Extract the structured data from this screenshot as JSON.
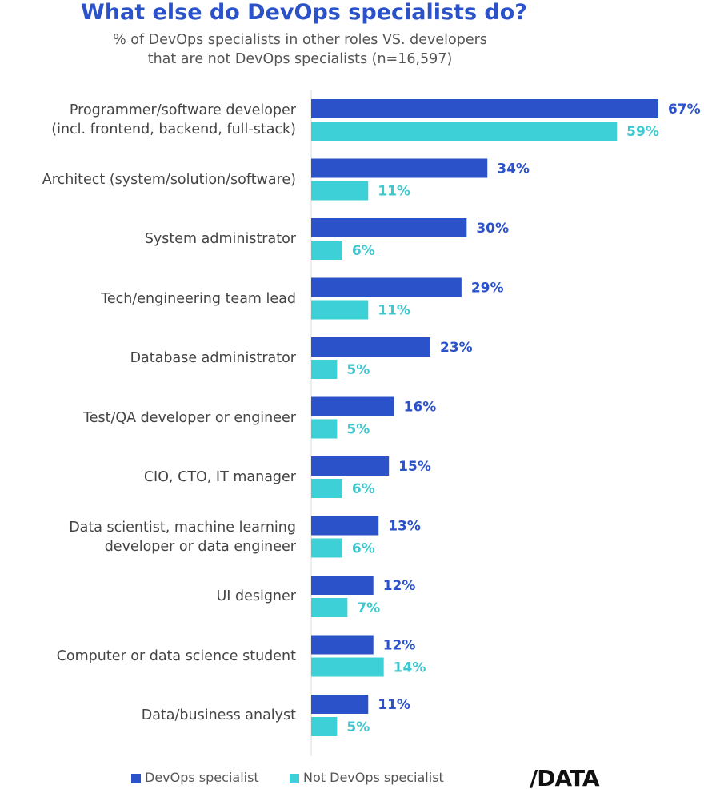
{
  "chart_data": {
    "type": "bar",
    "orientation": "horizontal",
    "title": "What else do DevOps specialists do?",
    "subtitle": "% of DevOps specialists in other roles VS. developers\nthat are not DevOps specialists (n=16,597)",
    "categories": [
      "Programmer/software developer\n(incl. frontend, backend, full-stack)",
      "Architect (system/solution/software)",
      "System administrator",
      "Tech/engineering team lead",
      "Database administrator",
      "Test/QA developer or engineer",
      "CIO, CTO, IT manager",
      "Data scientist, machine learning\ndeveloper or data engineer",
      "UI designer",
      "Computer or data science student",
      "Data/business analyst"
    ],
    "series": [
      {
        "name": "DevOps specialist",
        "color": "#2b52c8",
        "values": [
          67,
          34,
          30,
          29,
          23,
          16,
          15,
          13,
          12,
          12,
          11
        ],
        "value_labels": [
          "67%",
          "34%",
          "30%",
          "29%",
          "23%",
          "16%",
          "15%",
          "13%",
          "12%",
          "12%",
          "11%"
        ]
      },
      {
        "name": "Not DevOps specialist",
        "color": "#3dd0d6",
        "values": [
          59,
          11,
          6,
          11,
          5,
          5,
          6,
          6,
          7,
          14,
          5
        ],
        "value_labels": [
          "59%",
          "11%",
          "6%",
          "11%",
          "5%",
          "5%",
          "6%",
          "6%",
          "7%",
          "14%",
          "5%"
        ]
      }
    ],
    "legend": "bottom",
    "logo": "/DATA"
  }
}
